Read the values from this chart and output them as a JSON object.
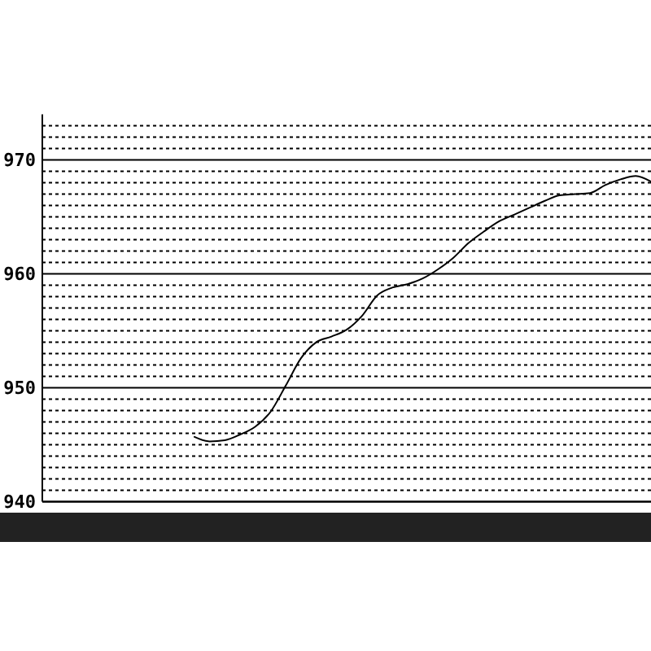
{
  "chart_data": {
    "type": "line",
    "categories": [
      null,
      null,
      null,
      null,
      null,
      null,
      null,
      null,
      null,
      null,
      null,
      null,
      null,
      null,
      null,
      null,
      null,
      null,
      null,
      null,
      null,
      null,
      null,
      null,
      null,
      null,
      null,
      null,
      null,
      null,
      null,
      null,
      null,
      null,
      null,
      null,
      null,
      null,
      null,
      null,
      null
    ],
    "values": [
      null,
      null,
      null,
      null,
      null,
      null,
      null,
      null,
      null,
      null,
      945.7,
      945.3,
      945.4,
      945.9,
      946.6,
      947.9,
      950.2,
      952.6,
      954.0,
      954.5,
      955.1,
      956.3,
      958.1,
      958.8,
      959.1,
      959.6,
      960.4,
      961.4,
      962.7,
      963.7,
      964.6,
      965.2,
      965.8,
      966.4,
      966.9,
      967.0,
      967.1,
      967.8,
      968.3,
      968.6,
      968.1
    ],
    "color": "#000000",
    "ylim": [
      940,
      974
    ],
    "yticks": [
      940,
      {
        "value": 941,
        "label": null
      },
      {
        "value": 942,
        "label": null
      },
      {
        "value": 943,
        "label": null
      },
      {
        "value": 944,
        "label": null
      },
      {
        "value": 945,
        "label": null
      },
      {
        "value": 946,
        "label": null
      },
      {
        "value": 947,
        "label": null
      },
      {
        "value": 948,
        "label": null
      },
      {
        "value": 949,
        "label": null
      },
      950,
      {
        "value": 951,
        "label": null
      },
      {
        "value": 952,
        "label": null
      },
      {
        "value": 953,
        "label": null
      },
      {
        "value": 954,
        "label": null
      },
      {
        "value": 955,
        "label": null
      },
      {
        "value": 956,
        "label": null
      },
      {
        "value": 957,
        "label": null
      },
      {
        "value": 958,
        "label": null
      },
      {
        "value": 959,
        "label": null
      },
      960,
      {
        "value": 961,
        "label": null
      },
      {
        "value": 962,
        "label": null
      },
      {
        "value": 963,
        "label": null
      },
      {
        "value": 964,
        "label": null
      },
      {
        "value": 965,
        "label": null
      },
      {
        "value": 966,
        "label": null
      },
      {
        "value": 967,
        "label": null
      },
      {
        "value": 968,
        "label": null
      },
      {
        "value": 969,
        "label": null
      },
      970,
      {
        "value": 971,
        "label": null
      },
      {
        "value": 972,
        "label": null
      },
      {
        "value": 973,
        "label": null
      }
    ],
    "grid": "y",
    "tick_labels": "y"
  }
}
